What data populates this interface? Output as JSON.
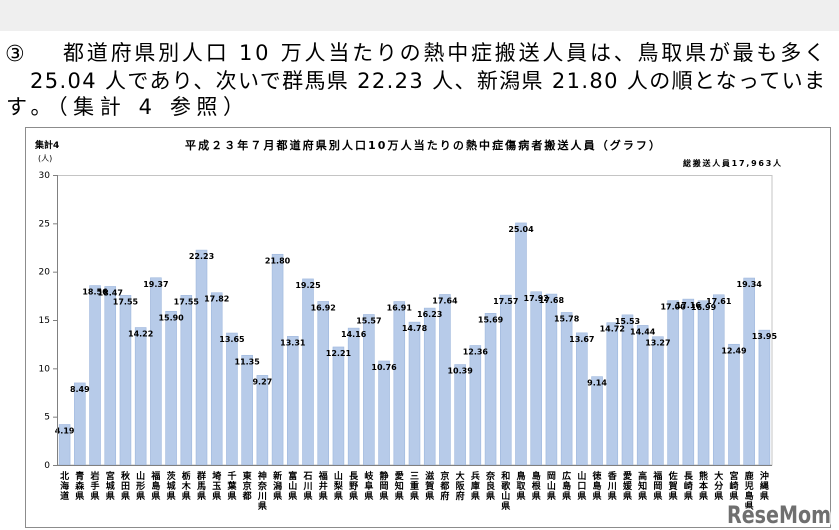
{
  "document": {
    "bullet": "③",
    "lines": [
      "都道府県別人口 10 万人当たりの熱中症搬送人員は、鳥取県が最も多く",
      "25.04 人であり、次いで群馬県 22.23 人、新潟県 21.80 人の順となっていま",
      "す。（集計 4 参照）"
    ]
  },
  "chart_data": {
    "type": "bar",
    "table_label": "集計4",
    "title": "平成２３年７月都道府県別人口10万人当たりの熱中症傷病者搬送人員（グラフ）",
    "subtitle": "総搬送人員17,963人",
    "xlabel": "",
    "ylabel": "(人)",
    "ylim": [
      0,
      30
    ],
    "yticks": [
      0,
      5,
      10,
      15,
      20,
      25,
      30
    ],
    "grid": false,
    "data_labels": true,
    "bar_color": "#b7cbe9",
    "categories": [
      "北海道",
      "青森県",
      "岩手県",
      "宮城県",
      "秋田県",
      "山形県",
      "福島県",
      "茨城県",
      "栃木県",
      "群馬県",
      "埼玉県",
      "千葉県",
      "東京都",
      "神奈川県",
      "新潟県",
      "富山県",
      "石川県",
      "福井県",
      "山梨県",
      "長野県",
      "岐阜県",
      "静岡県",
      "愛知県",
      "三重県",
      "滋賀県",
      "京都府",
      "大阪府",
      "兵庫県",
      "奈良県",
      "和歌山県",
      "鳥取県",
      "島根県",
      "岡山県",
      "広島県",
      "山口県",
      "徳島県",
      "香川県",
      "愛媛県",
      "高知県",
      "福岡県",
      "佐賀県",
      "長崎県",
      "熊本県",
      "大分県",
      "宮崎県",
      "鹿児島県",
      "沖縄県"
    ],
    "values": [
      4.19,
      8.49,
      18.56,
      18.47,
      17.55,
      14.22,
      19.37,
      15.9,
      17.55,
      22.23,
      17.82,
      13.65,
      11.35,
      9.27,
      21.8,
      13.31,
      19.25,
      16.92,
      12.21,
      14.16,
      15.57,
      10.76,
      16.91,
      14.78,
      16.23,
      17.64,
      10.39,
      12.36,
      15.69,
      17.57,
      25.04,
      17.92,
      17.68,
      15.78,
      13.67,
      9.14,
      14.72,
      15.53,
      14.44,
      13.27,
      17.0,
      17.16,
      16.99,
      17.61,
      12.49,
      19.34,
      13.95
    ]
  },
  "watermark": {
    "logo_text": "ReseMom",
    "color": "#6f6f6f"
  }
}
